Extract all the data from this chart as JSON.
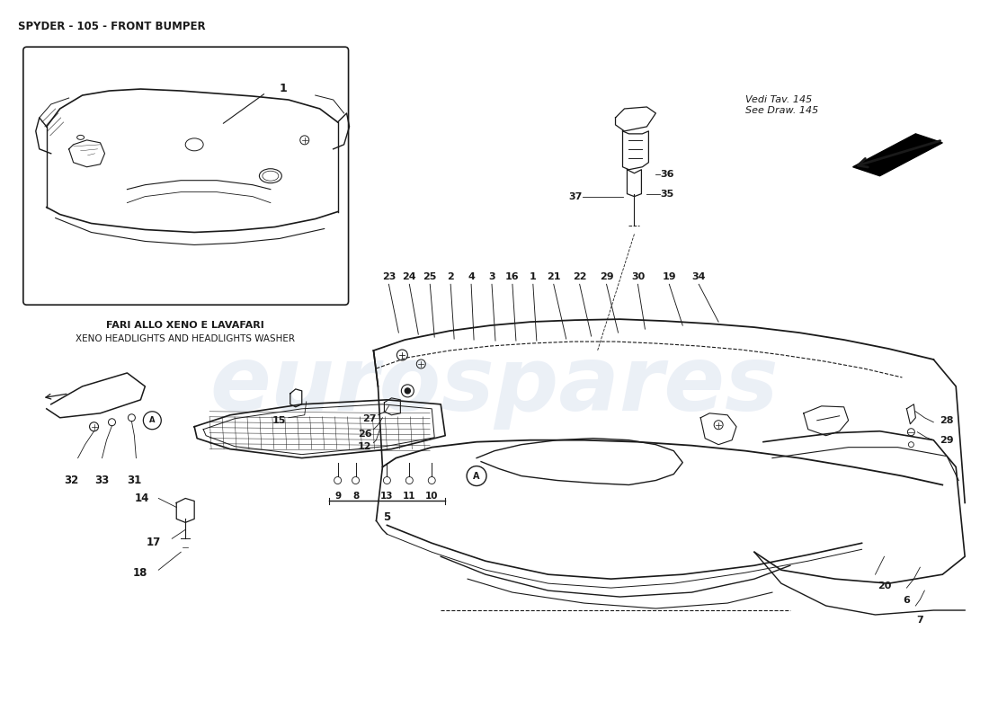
{
  "title": "SPYDER - 105 - FRONT BUMPER",
  "background_color": "#ffffff",
  "line_color": "#1a1a1a",
  "watermark_text": "eurospares",
  "watermark_color": "#c8d4e8",
  "inset_label_line1": "FARI ALLO XENO E LAVAFARI",
  "inset_label_line2": "XENO HEADLIGHTS AND HEADLIGHTS WASHER",
  "vedi_text": "Vedi Tav. 145\nSee Draw. 145"
}
